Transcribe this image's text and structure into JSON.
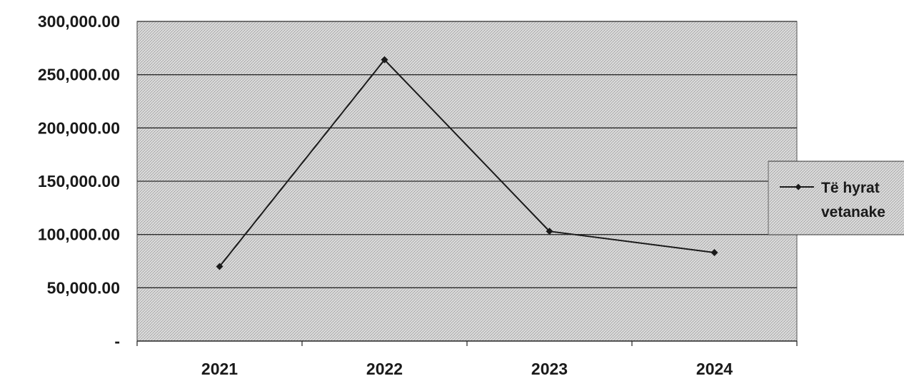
{
  "chart_data": {
    "type": "line",
    "title": "",
    "xlabel": "",
    "ylabel": "",
    "categories": [
      "2021",
      "2022",
      "2023",
      "2024"
    ],
    "ylim": [
      0,
      300000
    ],
    "yticks": [
      0,
      50000,
      100000,
      150000,
      200000,
      250000,
      300000
    ],
    "ytick_labels": [
      "-",
      "50,000.00",
      "100,000.00",
      "150,000.00",
      "200,000.00",
      "250,000.00",
      "300,000.00"
    ],
    "grid": true,
    "legend_position": "right",
    "series": [
      {
        "name": "Të hyrat vetanake",
        "legend_lines": [
          "Të hyrat",
          "vetanake"
        ],
        "values": [
          70000,
          264000,
          103000,
          83000
        ],
        "color": "#1a1a1a",
        "marker": "diamond"
      }
    ],
    "colors": {
      "plot_background": "#cfcfcf",
      "gridline": "#2a2a2a",
      "line": "#1a1a1a"
    }
  }
}
